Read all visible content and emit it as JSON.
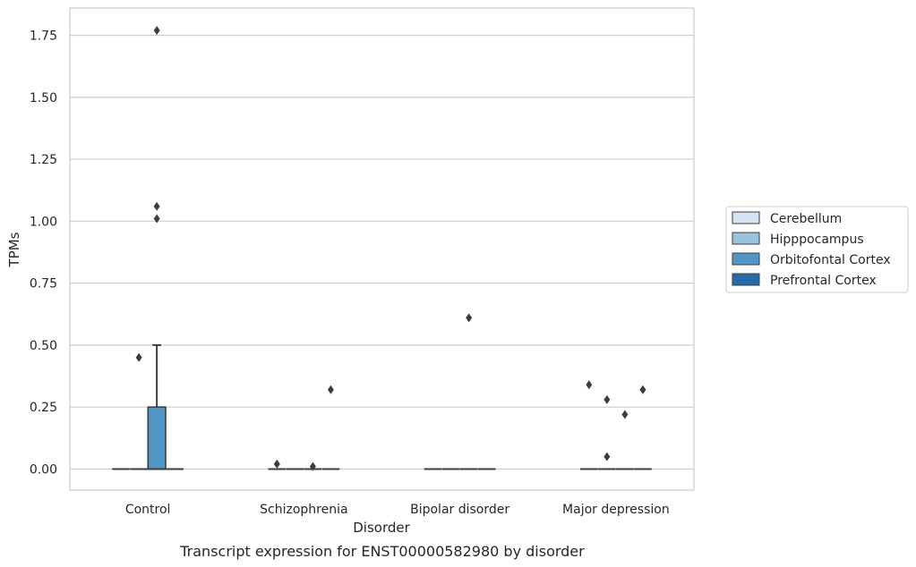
{
  "chart_data": {
    "type": "box",
    "caption": "Transcript expression for ENST00000582980 by disorder",
    "xlabel": "Disorder",
    "ylabel": "TPMs",
    "ylim": [
      -0.085,
      1.86
    ],
    "yticks": [
      0.0,
      0.25,
      0.5,
      0.75,
      1.0,
      1.25,
      1.5,
      1.75
    ],
    "ytick_labels": [
      "0.00",
      "0.25",
      "0.50",
      "0.75",
      "1.00",
      "1.25",
      "1.50",
      "1.75"
    ],
    "grid": true,
    "legend_position": "right",
    "categories": [
      "Control",
      "Schizophrenia",
      "Bipolar disorder",
      "Major depression"
    ],
    "series": [
      {
        "name": "Cerebellum",
        "color": "#d4e3f1",
        "boxes": [
          {
            "min": 0,
            "q1": 0,
            "median": 0,
            "q3": 0,
            "max": 0,
            "outliers": []
          },
          {
            "min": 0,
            "q1": 0,
            "median": 0,
            "q3": 0,
            "max": 0,
            "outliers": [
              0.02
            ]
          },
          {
            "min": 0,
            "q1": 0,
            "median": 0,
            "q3": 0,
            "max": 0,
            "outliers": []
          },
          {
            "min": 0,
            "q1": 0,
            "median": 0,
            "q3": 0,
            "max": 0,
            "outliers": [
              0.34
            ]
          }
        ]
      },
      {
        "name": "Hipppocampus",
        "color": "#9ac3de",
        "boxes": [
          {
            "min": 0,
            "q1": 0,
            "median": 0,
            "q3": 0,
            "max": 0,
            "outliers": [
              0.45
            ]
          },
          {
            "min": 0,
            "q1": 0,
            "median": 0,
            "q3": 0,
            "max": 0,
            "outliers": []
          },
          {
            "min": 0,
            "q1": 0,
            "median": 0,
            "q3": 0,
            "max": 0,
            "outliers": []
          },
          {
            "min": 0,
            "q1": 0,
            "median": 0,
            "q3": 0,
            "max": 0,
            "outliers": [
              0.05,
              0.28
            ]
          }
        ]
      },
      {
        "name": "Orbitofontal Cortex",
        "color": "#5296c5",
        "boxes": [
          {
            "min": 0,
            "q1": 0,
            "median": 0,
            "q3": 0.25,
            "max": 0.5,
            "outliers": [
              1.01,
              1.06,
              1.77
            ]
          },
          {
            "min": 0,
            "q1": 0,
            "median": 0,
            "q3": 0,
            "max": 0,
            "outliers": [
              0.01
            ]
          },
          {
            "min": 0,
            "q1": 0,
            "median": 0,
            "q3": 0,
            "max": 0,
            "outliers": [
              0.61
            ]
          },
          {
            "min": 0,
            "q1": 0,
            "median": 0,
            "q3": 0,
            "max": 0,
            "outliers": [
              0.22
            ]
          }
        ]
      },
      {
        "name": "Prefrontal Cortex",
        "color": "#2a6aa8",
        "boxes": [
          {
            "min": 0,
            "q1": 0,
            "median": 0,
            "q3": 0,
            "max": 0,
            "outliers": []
          },
          {
            "min": 0,
            "q1": 0,
            "median": 0,
            "q3": 0,
            "max": 0,
            "outliers": [
              0.32
            ]
          },
          {
            "min": 0,
            "q1": 0,
            "median": 0,
            "q3": 0,
            "max": 0,
            "outliers": []
          },
          {
            "min": 0,
            "q1": 0,
            "median": 0,
            "q3": 0,
            "max": 0,
            "outliers": [
              0.32
            ]
          }
        ]
      }
    ],
    "colors": {
      "grid": "#cccccc",
      "frame": "#cccccc",
      "line": "#3d3d3d",
      "outlier": "#3d3d3d"
    }
  }
}
